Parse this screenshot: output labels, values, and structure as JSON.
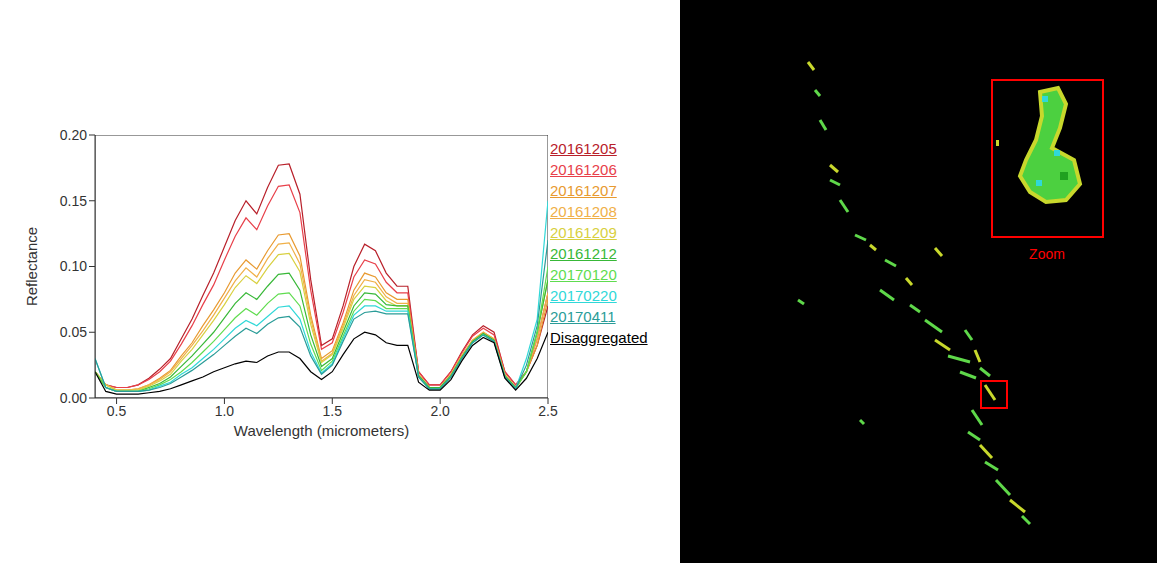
{
  "chart_data": {
    "type": "line",
    "x_label": "Wavelength (micrometers)",
    "y_label": "Reflectance",
    "xlim": [
      0.4,
      2.5
    ],
    "xticks": [
      0.5,
      {
        "value": 1,
        "label": "1.0"
      },
      1.5,
      {
        "value": 2,
        "label": "2.0"
      },
      2.5
    ],
    "ylim": [
      0,
      0.2
    ],
    "yticks": [
      {
        "value": 0,
        "label": "0.00"
      },
      {
        "value": 0.05,
        "label": "0.05"
      },
      {
        "value": 0.1,
        "label": "0.10"
      },
      {
        "value": 0.15,
        "label": "0.15"
      },
      {
        "value": 0.2,
        "label": "0.20"
      }
    ],
    "grid": false,
    "legend": "right",
    "x": [
      0.4,
      0.45,
      0.5,
      0.55,
      0.6,
      0.65,
      0.7,
      0.75,
      0.8,
      0.85,
      0.9,
      0.95,
      1.0,
      1.05,
      1.1,
      1.15,
      1.2,
      1.25,
      1.3,
      1.35,
      1.4,
      1.45,
      1.5,
      1.55,
      1.6,
      1.65,
      1.7,
      1.75,
      1.8,
      1.85,
      1.9,
      1.95,
      2.0,
      2.05,
      2.1,
      2.15,
      2.2,
      2.25,
      2.3,
      2.35,
      2.4,
      2.45,
      2.5
    ],
    "series": [
      {
        "name": "20161205",
        "color": "#b8202a",
        "values": [
          0.02,
          0.01,
          0.008,
          0.008,
          0.01,
          0.015,
          0.022,
          0.03,
          0.045,
          0.06,
          0.078,
          0.095,
          0.115,
          0.135,
          0.15,
          0.14,
          0.16,
          0.177,
          0.178,
          0.155,
          0.09,
          0.04,
          0.045,
          0.07,
          0.1,
          0.117,
          0.112,
          0.095,
          0.085,
          0.085,
          0.02,
          0.01,
          0.01,
          0.02,
          0.035,
          0.048,
          0.055,
          0.05,
          0.02,
          0.01,
          0.02,
          0.04,
          0.07
        ]
      },
      {
        "name": "20161206",
        "color": "#e8404a",
        "values": [
          0.02,
          0.01,
          0.008,
          0.008,
          0.01,
          0.014,
          0.02,
          0.028,
          0.041,
          0.055,
          0.071,
          0.086,
          0.105,
          0.123,
          0.137,
          0.128,
          0.146,
          0.161,
          0.162,
          0.141,
          0.082,
          0.037,
          0.042,
          0.065,
          0.092,
          0.105,
          0.102,
          0.088,
          0.08,
          0.08,
          0.02,
          0.01,
          0.01,
          0.02,
          0.034,
          0.047,
          0.053,
          0.048,
          0.02,
          0.01,
          0.02,
          0.045,
          0.08
        ]
      },
      {
        "name": "20161207",
        "color": "#e89a30",
        "values": [
          0.02,
          0.01,
          0.006,
          0.006,
          0.007,
          0.01,
          0.015,
          0.021,
          0.032,
          0.042,
          0.055,
          0.067,
          0.08,
          0.095,
          0.105,
          0.098,
          0.112,
          0.124,
          0.125,
          0.108,
          0.063,
          0.03,
          0.036,
          0.057,
          0.082,
          0.095,
          0.092,
          0.08,
          0.075,
          0.075,
          0.018,
          0.008,
          0.008,
          0.018,
          0.032,
          0.044,
          0.05,
          0.045,
          0.018,
          0.008,
          0.02,
          0.04,
          0.075
        ]
      },
      {
        "name": "20161208",
        "color": "#f0b048",
        "values": [
          0.02,
          0.01,
          0.006,
          0.006,
          0.007,
          0.01,
          0.014,
          0.02,
          0.03,
          0.04,
          0.051,
          0.063,
          0.076,
          0.089,
          0.099,
          0.092,
          0.106,
          0.117,
          0.118,
          0.102,
          0.06,
          0.028,
          0.034,
          0.055,
          0.078,
          0.09,
          0.088,
          0.077,
          0.072,
          0.072,
          0.018,
          0.008,
          0.008,
          0.018,
          0.032,
          0.044,
          0.05,
          0.045,
          0.018,
          0.008,
          0.02,
          0.045,
          0.08
        ]
      },
      {
        "name": "20161209",
        "color": "#d8d040",
        "values": [
          0.02,
          0.01,
          0.006,
          0.006,
          0.006,
          0.009,
          0.013,
          0.018,
          0.028,
          0.037,
          0.048,
          0.059,
          0.071,
          0.084,
          0.093,
          0.087,
          0.099,
          0.109,
          0.11,
          0.096,
          0.056,
          0.027,
          0.033,
          0.053,
          0.075,
          0.085,
          0.084,
          0.074,
          0.07,
          0.07,
          0.017,
          0.008,
          0.008,
          0.017,
          0.031,
          0.043,
          0.049,
          0.044,
          0.017,
          0.008,
          0.02,
          0.05,
          0.09
        ]
      },
      {
        "name": "20161212",
        "color": "#38b838",
        "values": [
          0.02,
          0.008,
          0.005,
          0.005,
          0.005,
          0.008,
          0.011,
          0.016,
          0.024,
          0.032,
          0.041,
          0.05,
          0.061,
          0.072,
          0.08,
          0.075,
          0.085,
          0.094,
          0.095,
          0.082,
          0.048,
          0.024,
          0.03,
          0.05,
          0.07,
          0.08,
          0.079,
          0.071,
          0.07,
          0.07,
          0.017,
          0.008,
          0.008,
          0.017,
          0.031,
          0.043,
          0.049,
          0.044,
          0.017,
          0.008,
          0.02,
          0.05,
          0.09
        ]
      },
      {
        "name": "20170120",
        "color": "#60dc50",
        "values": [
          0.02,
          0.008,
          0.005,
          0.005,
          0.005,
          0.007,
          0.01,
          0.014,
          0.02,
          0.027,
          0.035,
          0.043,
          0.052,
          0.061,
          0.068,
          0.063,
          0.072,
          0.079,
          0.08,
          0.07,
          0.041,
          0.021,
          0.028,
          0.047,
          0.066,
          0.075,
          0.074,
          0.068,
          0.068,
          0.068,
          0.016,
          0.007,
          0.007,
          0.016,
          0.03,
          0.042,
          0.048,
          0.043,
          0.016,
          0.007,
          0.02,
          0.05,
          0.1
        ]
      },
      {
        "name": "20170220",
        "color": "#30d8d8",
        "values": [
          0.03,
          0.008,
          0.005,
          0.005,
          0.005,
          0.006,
          0.009,
          0.012,
          0.018,
          0.023,
          0.03,
          0.037,
          0.045,
          0.053,
          0.059,
          0.055,
          0.062,
          0.069,
          0.07,
          0.06,
          0.035,
          0.019,
          0.026,
          0.045,
          0.063,
          0.07,
          0.07,
          0.066,
          0.066,
          0.066,
          0.016,
          0.007,
          0.007,
          0.016,
          0.03,
          0.042,
          0.048,
          0.043,
          0.016,
          0.007,
          0.03,
          0.06,
          0.15
        ]
      },
      {
        "name": "20170411",
        "color": "#2a9c98",
        "values": [
          0.03,
          0.008,
          0.005,
          0.005,
          0.005,
          0.006,
          0.008,
          0.011,
          0.016,
          0.021,
          0.027,
          0.033,
          0.04,
          0.047,
          0.053,
          0.049,
          0.056,
          0.061,
          0.062,
          0.054,
          0.032,
          0.018,
          0.025,
          0.043,
          0.06,
          0.065,
          0.066,
          0.064,
          0.064,
          0.064,
          0.016,
          0.007,
          0.007,
          0.016,
          0.03,
          0.042,
          0.048,
          0.043,
          0.016,
          0.007,
          0.025,
          0.055,
          0.12
        ]
      },
      {
        "name": "Disaggregated",
        "color": "#000000",
        "values": [
          0.02,
          0.005,
          0.003,
          0.003,
          0.003,
          0.004,
          0.005,
          0.007,
          0.01,
          0.013,
          0.016,
          0.02,
          0.023,
          0.026,
          0.028,
          0.027,
          0.032,
          0.035,
          0.035,
          0.03,
          0.02,
          0.014,
          0.02,
          0.033,
          0.045,
          0.05,
          0.048,
          0.042,
          0.04,
          0.04,
          0.012,
          0.006,
          0.006,
          0.014,
          0.028,
          0.04,
          0.046,
          0.042,
          0.015,
          0.006,
          0.015,
          0.03,
          0.05
        ]
      }
    ]
  },
  "image_panel": {
    "zoom_label": "Zoom"
  }
}
